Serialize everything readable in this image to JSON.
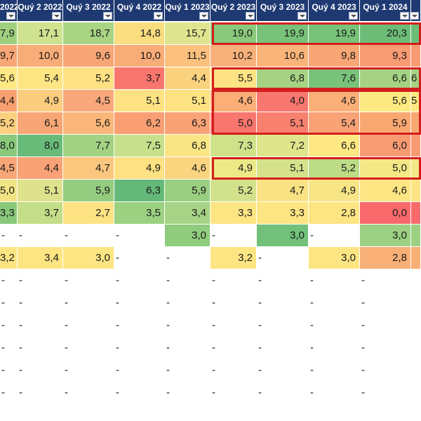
{
  "headers": [
    "2022",
    "Quý 2 2022",
    "Quý 3 2022",
    "Quý 4 2022",
    "Quý 1 2023",
    "Quý 2 2023",
    "Quý 3 2023",
    "Quý 4 2023",
    "Quý 1 2024",
    ""
  ],
  "rows": [
    [
      "7,9",
      "17,1",
      "18,7",
      "14,8",
      "15,7",
      "19,0",
      "19,9",
      "19,9",
      "20,3",
      ""
    ],
    [
      "9,7",
      "10,0",
      "9,6",
      "10,0",
      "11,5",
      "10,2",
      "10,6",
      "9,8",
      "9,3",
      ""
    ],
    [
      "5,6",
      "5,4",
      "5,2",
      "3,7",
      "4,4",
      "5,5",
      "6,8",
      "7,6",
      "6,6",
      "6"
    ],
    [
      "4,4",
      "4,9",
      "4,5",
      "5,1",
      "5,1",
      "4,6",
      "4,0",
      "4,6",
      "5,6",
      "5"
    ],
    [
      "5,2",
      "6,1",
      "5,6",
      "6,2",
      "6,3",
      "5,0",
      "5,1",
      "5,4",
      "5,9",
      ""
    ],
    [
      "8,0",
      "8,0",
      "7,7",
      "7,5",
      "6,8",
      "7,3",
      "7,2",
      "6,6",
      "6,0",
      ""
    ],
    [
      "4,5",
      "4,4",
      "4,7",
      "4,9",
      "4,6",
      "4,9",
      "5,1",
      "5,2",
      "5,0",
      ""
    ],
    [
      "5,0",
      "5,1",
      "5,9",
      "6,3",
      "5,9",
      "5,2",
      "4,7",
      "4,9",
      "4,6",
      ""
    ],
    [
      "3,3",
      "3,7",
      "2,7",
      "3,5",
      "3,4",
      "3,3",
      "3,3",
      "2,8",
      "0,0",
      ""
    ],
    [
      "-",
      "-",
      "-",
      "-",
      "3,0",
      "-",
      "3,0",
      "-",
      "3,0",
      ""
    ],
    [
      "3,2",
      "3,4",
      "3,0",
      "-",
      "-",
      "3,2",
      "-",
      "3,0",
      "2,8",
      ""
    ],
    [
      "-",
      "-",
      "-",
      "-",
      "-",
      "-",
      "-",
      "-",
      "-",
      ""
    ],
    [
      "-",
      "-",
      "-",
      "-",
      "-",
      "-",
      "-",
      "-",
      "-",
      ""
    ],
    [
      "-",
      "-",
      "-",
      "-",
      "-",
      "-",
      "-",
      "-",
      "-",
      ""
    ],
    [
      "-",
      "-",
      "-",
      "-",
      "-",
      "-",
      "-",
      "-",
      "-",
      ""
    ],
    [
      "-",
      "-",
      "-",
      "-",
      "-",
      "-",
      "-",
      "-",
      "-",
      ""
    ],
    [
      "-",
      "-",
      "-",
      "-",
      "-",
      "-",
      "-",
      "-",
      "-",
      ""
    ]
  ],
  "colors": [
    [
      "#9fd080",
      "#cfe290",
      "#a9d483",
      "#fadd7f",
      "#dfe58f",
      "#8ac97b",
      "#78c27a",
      "#78c27a",
      "#6dbd78",
      "#6dbd78"
    ],
    [
      "#f8a676",
      "#f8ac77",
      "#f8a676",
      "#f8ac77",
      "#fcc07f",
      "#f8b07a",
      "#fab479",
      "#f8a676",
      "#f89a72",
      "#f89a72"
    ],
    [
      "#ffe982",
      "#fde584",
      "#fde183",
      "#f8766d",
      "#fbd37f",
      "#fde383",
      "#a6d383",
      "#79c27a",
      "#a5d283",
      "#a5d283"
    ],
    [
      "#f8a070",
      "#fbcc7e",
      "#f8a87a",
      "#fde283",
      "#fde283",
      "#fbae76",
      "#f8776e",
      "#fbaf78",
      "#fde982",
      "#fde982"
    ],
    [
      "#fcd07f",
      "#f8a676",
      "#fbb679",
      "#f99f73",
      "#f9a276",
      "#f8766d",
      "#f8806f",
      "#f8a275",
      "#f9a872",
      "#f9a872"
    ],
    [
      "#8ac97b",
      "#68bb79",
      "#a2d283",
      "#c6e08b",
      "#fae584",
      "#cfe28a",
      "#dfe58b",
      "#fde883",
      "#f89b73",
      "#f89b73"
    ],
    [
      "#f8a677",
      "#f9a276",
      "#fbc77e",
      "#fde182",
      "#fbd47f",
      "#ede987",
      "#d6e28a",
      "#bcdc86",
      "#f4e785",
      "#f4e785"
    ],
    [
      "#f2e384",
      "#dfe28c",
      "#94cb7f",
      "#64b978",
      "#9acf81",
      "#d2e18c",
      "#f9e283",
      "#f7e485",
      "#fde583",
      "#fde583"
    ],
    [
      "#88c87b",
      "#c3dd88",
      "#fde383",
      "#9cd182",
      "#a6d385",
      "#fde583",
      "#fde583",
      "#fde583",
      "#f8696b",
      "#f8696b"
    ],
    [
      "#ffffff",
      "#ffffff",
      "#ffffff",
      "#ffffff",
      "#8fcc7d",
      "#ffffff",
      "#71c17a",
      "#ffffff",
      "#9cd082",
      "#9cd082"
    ],
    [
      "#fde583",
      "#fde583",
      "#fde583",
      "#ffffff",
      "#ffffff",
      "#fde583",
      "#ffffff",
      "#fde583",
      "#f8b077",
      "#f8b077"
    ],
    [
      "#ffffff",
      "#ffffff",
      "#ffffff",
      "#ffffff",
      "#ffffff",
      "#ffffff",
      "#ffffff",
      "#ffffff",
      "#ffffff",
      "#ffffff"
    ],
    [
      "#ffffff",
      "#ffffff",
      "#ffffff",
      "#ffffff",
      "#ffffff",
      "#ffffff",
      "#ffffff",
      "#ffffff",
      "#ffffff",
      "#ffffff"
    ],
    [
      "#ffffff",
      "#ffffff",
      "#ffffff",
      "#ffffff",
      "#ffffff",
      "#ffffff",
      "#ffffff",
      "#ffffff",
      "#ffffff",
      "#ffffff"
    ],
    [
      "#ffffff",
      "#ffffff",
      "#ffffff",
      "#ffffff",
      "#ffffff",
      "#ffffff",
      "#ffffff",
      "#ffffff",
      "#ffffff",
      "#ffffff"
    ],
    [
      "#ffffff",
      "#ffffff",
      "#ffffff",
      "#ffffff",
      "#ffffff",
      "#ffffff",
      "#ffffff",
      "#ffffff",
      "#ffffff",
      "#ffffff"
    ],
    [
      "#ffffff",
      "#ffffff",
      "#ffffff",
      "#ffffff",
      "#ffffff",
      "#ffffff",
      "#ffffff",
      "#ffffff",
      "#ffffff",
      "#ffffff"
    ]
  ],
  "highlight_color": "#d31d1d",
  "header_color": "#1f3a72",
  "icons": {
    "filter": "filter-dropdown-icon"
  }
}
